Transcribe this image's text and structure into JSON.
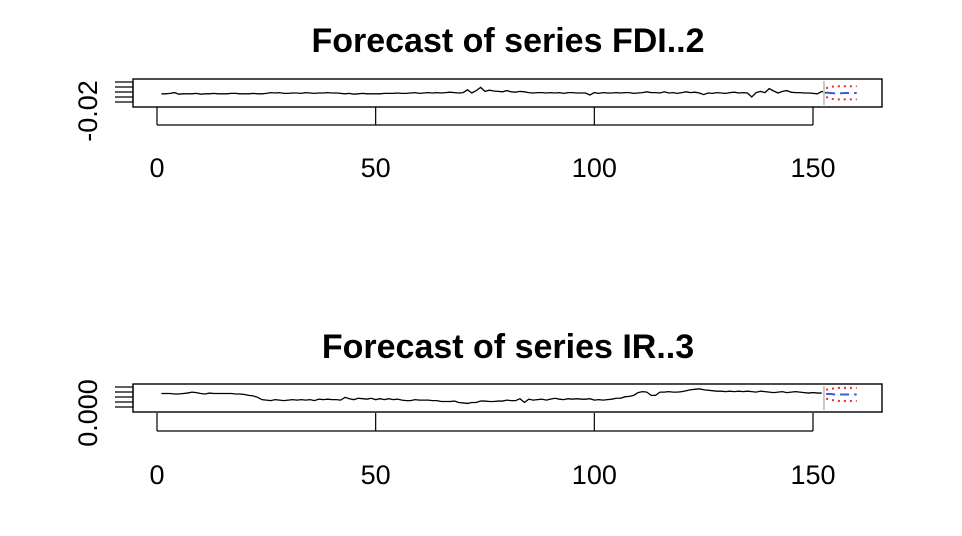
{
  "chart_data": [
    {
      "type": "line",
      "title": "Forecast of series FDI..2",
      "xlim": [
        0,
        166
      ],
      "x_ticks": [
        "0",
        "50",
        "100",
        "150"
      ],
      "y_tick_label": "-0.02",
      "ylim": [
        -0.032,
        0.028
      ],
      "series": [
        {
          "role": "history",
          "x_start": 1,
          "values": [
            -0.004,
            -0.004,
            -0.003,
            -0.001,
            -0.005,
            -0.004,
            -0.004,
            -0.004,
            -0.003,
            -0.005,
            -0.004,
            -0.004,
            -0.003,
            -0.004,
            -0.004,
            -0.004,
            -0.003,
            -0.003,
            -0.004,
            -0.004,
            -0.004,
            -0.003,
            -0.004,
            -0.004,
            -0.003,
            -0.001,
            -0.002,
            -0.001,
            -0.003,
            -0.003,
            -0.002,
            -0.002,
            -0.003,
            -0.001,
            -0.002,
            -0.003,
            -0.002,
            -0.002,
            -0.001,
            -0.002,
            -0.002,
            -0.003,
            -0.004,
            -0.003,
            -0.005,
            -0.004,
            -0.003,
            -0.004,
            -0.004,
            -0.004,
            -0.004,
            -0.003,
            -0.003,
            -0.003,
            -0.002,
            -0.003,
            -0.003,
            -0.002,
            -0.001,
            -0.003,
            -0.002,
            -0.001,
            -0.002,
            -0.001,
            -0.002,
            -0.001,
            0.0,
            -0.001,
            -0.002,
            -0.001,
            0.006,
            -0.002,
            0.004,
            0.012,
            0.002,
            0.005,
            0.003,
            0.002,
            0.001,
            0.004,
            0.001,
            0.0,
            0.002,
            0.001,
            -0.001,
            -0.002,
            -0.001,
            -0.001,
            -0.002,
            -0.001,
            -0.002,
            -0.001,
            -0.003,
            -0.001,
            -0.001,
            -0.002,
            -0.002,
            -0.002,
            -0.007,
            -0.001,
            -0.003,
            -0.001,
            -0.002,
            -0.002,
            -0.001,
            -0.002,
            -0.001,
            -0.001,
            -0.003,
            -0.002,
            -0.001,
            0.001,
            -0.001,
            -0.001,
            -0.002,
            0.001,
            -0.002,
            -0.001,
            -0.003,
            -0.001,
            0.001,
            -0.001,
            0.0,
            -0.002,
            -0.006,
            -0.002,
            -0.003,
            -0.001,
            -0.002,
            -0.003,
            -0.001,
            0.0,
            -0.002,
            -0.001,
            -0.002,
            -0.012,
            -0.001,
            0.002,
            -0.001,
            0.009,
            0.003,
            -0.002,
            0.002,
            0.004,
            0.0,
            -0.001,
            -0.001,
            -0.002,
            -0.002,
            -0.003,
            -0.004,
            0.002,
            -0.002
          ]
        },
        {
          "role": "forecast",
          "x": [
            153,
            154,
            155,
            156,
            157,
            158,
            159,
            160
          ],
          "mean": [
            -0.001,
            -0.002,
            -0.003,
            -0.003,
            -0.002,
            -0.002,
            -0.002,
            -0.002
          ],
          "upper": [
            0.01,
            0.013,
            0.015,
            0.015,
            0.015,
            0.015,
            0.015,
            0.015
          ],
          "lower": [
            -0.012,
            -0.016,
            -0.018,
            -0.018,
            -0.018,
            -0.018,
            -0.018,
            -0.018
          ]
        }
      ]
    },
    {
      "type": "line",
      "title": "Forecast of series IR..3",
      "xlim": [
        0,
        166
      ],
      "x_ticks": [
        "0",
        "50",
        "100",
        "150"
      ],
      "y_tick_label": "0.000",
      "ylim": [
        -0.035,
        0.016
      ],
      "series": [
        {
          "role": "history",
          "x_start": 1,
          "values": [
            0.0,
            0.0,
            0.0,
            -0.001,
            -0.001,
            0.0,
            0.001,
            0.003,
            0.002,
            0.0,
            -0.001,
            0.001,
            0.0,
            0.0,
            0.0,
            0.0,
            0.0,
            -0.001,
            -0.001,
            -0.002,
            -0.004,
            -0.005,
            -0.008,
            -0.013,
            -0.014,
            -0.015,
            -0.013,
            -0.014,
            -0.015,
            -0.014,
            -0.013,
            -0.014,
            -0.013,
            -0.014,
            -0.013,
            -0.015,
            -0.012,
            -0.013,
            -0.012,
            -0.013,
            -0.013,
            -0.014,
            -0.008,
            -0.011,
            -0.013,
            -0.01,
            -0.011,
            -0.012,
            -0.01,
            -0.013,
            -0.011,
            -0.013,
            -0.011,
            -0.013,
            -0.012,
            -0.014,
            -0.015,
            -0.015,
            -0.013,
            -0.014,
            -0.014,
            -0.014,
            -0.015,
            -0.015,
            -0.017,
            -0.017,
            -0.017,
            -0.016,
            -0.019,
            -0.02,
            -0.021,
            -0.019,
            -0.019,
            -0.016,
            -0.016,
            -0.017,
            -0.017,
            -0.016,
            -0.016,
            -0.014,
            -0.015,
            -0.015,
            -0.011,
            -0.019,
            -0.012,
            -0.014,
            -0.013,
            -0.012,
            -0.014,
            -0.012,
            -0.01,
            -0.012,
            -0.013,
            -0.011,
            -0.012,
            -0.011,
            -0.012,
            -0.012,
            -0.011,
            -0.014,
            -0.013,
            -0.014,
            -0.013,
            -0.012,
            -0.01,
            -0.01,
            -0.007,
            -0.006,
            -0.004,
            0.002,
            0.004,
            0.003,
            -0.004,
            -0.004,
            0.003,
            0.003,
            0.004,
            0.003,
            0.003,
            0.004,
            0.006,
            0.008,
            0.009,
            0.01,
            0.008,
            0.007,
            0.006,
            0.005,
            0.005,
            0.004,
            0.005,
            0.004,
            0.005,
            0.004,
            0.005,
            0.004,
            0.003,
            0.005,
            0.004,
            0.003,
            0.002,
            0.003,
            0.004,
            0.002,
            0.003,
            0.004,
            0.003,
            0.002,
            0.001,
            0.002,
            0.001,
            0.001
          ]
        },
        {
          "role": "forecast",
          "x": [
            153,
            154,
            155,
            156,
            157,
            158,
            159,
            160
          ],
          "mean": [
            -0.001,
            -0.001,
            -0.002,
            -0.002,
            -0.002,
            -0.002,
            -0.002,
            -0.002
          ],
          "upper": [
            0.008,
            0.01,
            0.011,
            0.012,
            0.012,
            0.012,
            0.012,
            0.012
          ],
          "lower": [
            -0.011,
            -0.013,
            -0.015,
            -0.016,
            -0.016,
            -0.016,
            -0.016,
            -0.016
          ]
        }
      ]
    }
  ]
}
